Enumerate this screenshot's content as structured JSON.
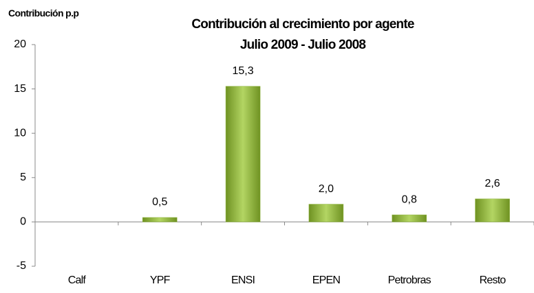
{
  "chart_data": {
    "type": "bar",
    "title": "Contribución al crecimiento por agente",
    "subtitle": "Julio 2009 - Julio 2008",
    "y_label": "Contribución p.p",
    "categories": [
      "Calf",
      "YPF",
      "ENSI",
      "EPEN",
      "Petrobras",
      "Resto"
    ],
    "values": [
      null,
      0.5,
      15.3,
      2.0,
      0.8,
      2.6
    ],
    "value_labels": [
      null,
      "0,5",
      "15,3",
      "2,0",
      "0,8",
      "2,6"
    ],
    "color": "#8db43a",
    "ylim": [
      -5,
      20
    ],
    "yticks": [
      -5,
      0,
      5,
      10,
      15,
      20
    ],
    "grid": false
  }
}
